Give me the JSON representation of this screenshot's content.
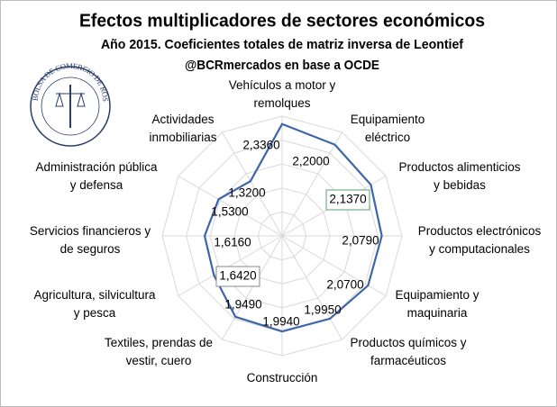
{
  "chart_data": {
    "type": "radar",
    "title": "Efectos multiplicadores de sectores económicos",
    "subtitle": "Año 2015. Coeficientes totales de matriz inversa de Leontief",
    "source": "@BCRmercados en base a OCDE",
    "logo_text": "BOLSA DE COMERCIO DE ROSARIO",
    "categories": [
      "Vehículos a motor y remolques",
      "Equipamiento eléctrico",
      "Productos alimenticios y bebidas",
      "Productos electrónicos y computacionales",
      "Equipamiento y maquinaria",
      "Productos químicos y farmacéuticos",
      "Construcción",
      "Textiles, prendas de vestir, cuero",
      "Agricultura, silvicultura y pesca",
      "Servicios financieros y de seguros",
      "Administración pública y defensa",
      "Actividades inmobiliarias"
    ],
    "values": [
      2.336,
      2.2,
      2.137,
      2.079,
      2.07,
      1.995,
      1.994,
      1.949,
      1.642,
      1.616,
      1.53,
      1.32
    ],
    "value_labels": [
      "2,3360",
      "2,2000",
      "2,1370",
      "2,0790",
      "2,0700",
      "1,9950",
      "1,9940",
      "1,9490",
      "1,6420",
      "1,6160",
      "1,5300",
      "1,3200"
    ],
    "highlighted": [
      2,
      8
    ],
    "color": "#3d66a8",
    "ylim": [
      0,
      2.5
    ],
    "yticks": [
      0,
      0.5,
      1,
      1.5,
      2,
      2.5
    ],
    "grid": true
  }
}
